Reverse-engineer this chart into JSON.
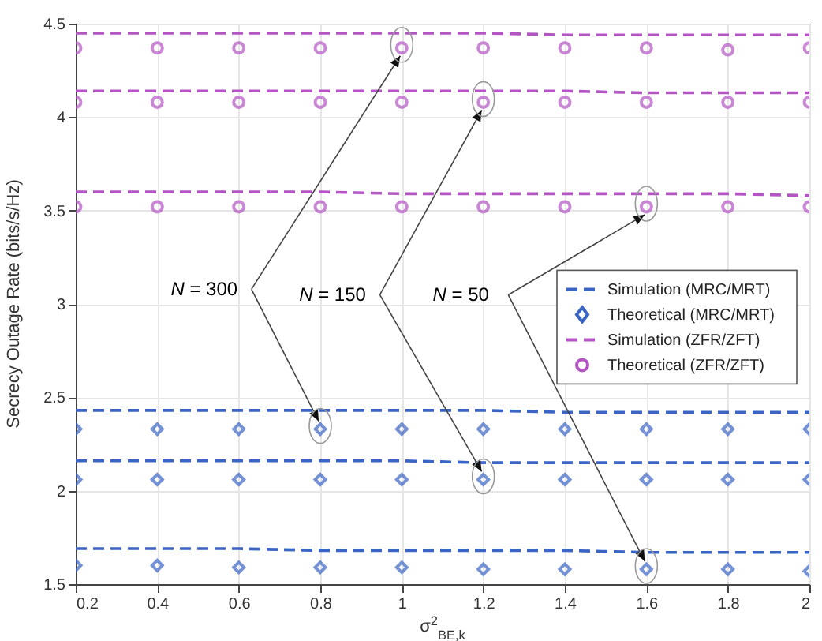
{
  "chart_data": {
    "type": "line",
    "xlabel": "σ$^{2}$$_{BE,k}$",
    "ylabel": "Secrecy Outage Rate (bits/s/Hz)",
    "x": [
      0.2,
      0.4,
      0.6,
      0.8,
      1,
      1.2,
      1.4,
      1.6,
      1.8,
      2
    ],
    "xlim": [
      0.2,
      2
    ],
    "xticks": [
      0.2,
      0.4,
      0.6,
      0.8,
      1,
      1.2,
      1.4,
      1.6,
      1.8,
      2
    ],
    "ylim": [
      1.5,
      4.5
    ],
    "yticks": [
      1.5,
      2,
      2.5,
      3,
      3.5,
      4,
      4.5
    ],
    "grid": true,
    "legend": "right",
    "series": [
      {
        "name": "Simulation (MRC/MRT)",
        "line_style": "dashed",
        "color": "#3a65c4",
        "values": [
          2.43,
          2.43,
          2.43,
          2.43,
          2.43,
          2.43,
          2.42,
          2.42,
          2.42,
          2.42
        ]
      },
      {
        "line_style": "dashed",
        "color": "#3a65c4",
        "values": [
          2.16,
          2.16,
          2.16,
          2.16,
          2.16,
          2.15,
          2.15,
          2.15,
          2.15,
          2.15
        ]
      },
      {
        "line_style": "dashed",
        "color": "#3a65c4",
        "values": [
          1.69,
          1.69,
          1.69,
          1.68,
          1.68,
          1.68,
          1.68,
          1.67,
          1.67,
          1.67
        ]
      },
      {
        "name": "Theoretical (MRC/MRT)",
        "type": "scatter",
        "marker": "diamond",
        "color": "#3a65c4",
        "values": [
          2.33,
          2.33,
          2.33,
          2.33,
          2.33,
          2.33,
          2.33,
          2.33,
          2.33,
          2.33
        ]
      },
      {
        "type": "scatter",
        "marker": "diamond",
        "color": "#3a65c4",
        "values": [
          2.06,
          2.06,
          2.06,
          2.06,
          2.06,
          2.06,
          2.06,
          2.06,
          2.06,
          2.06
        ]
      },
      {
        "type": "scatter",
        "marker": "diamond",
        "color": "#3a65c4",
        "values": [
          1.6,
          1.6,
          1.59,
          1.59,
          1.59,
          1.58,
          1.58,
          1.58,
          1.58,
          1.57
        ]
      },
      {
        "name": "Simulation (ZFR/ZFT)",
        "line_style": "dashed",
        "color": "#b455c4",
        "values": [
          4.45,
          4.45,
          4.45,
          4.45,
          4.45,
          4.45,
          4.44,
          4.44,
          4.44,
          4.44
        ]
      },
      {
        "line_style": "dashed",
        "color": "#b455c4",
        "values": [
          4.14,
          4.14,
          4.14,
          4.14,
          4.14,
          4.14,
          4.14,
          4.13,
          4.13,
          4.13
        ]
      },
      {
        "line_style": "dashed",
        "color": "#b455c4",
        "values": [
          3.6,
          3.6,
          3.6,
          3.6,
          3.59,
          3.59,
          3.59,
          3.59,
          3.59,
          3.58
        ]
      },
      {
        "name": "Theoretical (ZFR/ZFT)",
        "type": "scatter",
        "marker": "circle",
        "color": "#b455c4",
        "values": [
          4.37,
          4.37,
          4.37,
          4.37,
          4.37,
          4.37,
          4.37,
          4.37,
          4.36,
          4.37
        ]
      },
      {
        "type": "scatter",
        "marker": "circle",
        "color": "#b455c4",
        "values": [
          4.08,
          4.08,
          4.08,
          4.08,
          4.08,
          4.08,
          4.08,
          4.08,
          4.08,
          4.08
        ]
      },
      {
        "type": "scatter",
        "marker": "circle",
        "color": "#b455c4",
        "values": [
          3.52,
          3.52,
          3.52,
          3.52,
          3.52,
          3.52,
          3.52,
          3.52,
          3.52,
          3.52
        ]
      }
    ],
    "annotations": [
      {
        "text": "N = 300",
        "x": 0.8,
        "y": 2.33
      },
      {
        "text": "N = 150",
        "x": 1.2,
        "y": 2.06
      },
      {
        "text": "N = 50",
        "x": 1.6,
        "y": 1.58
      }
    ]
  }
}
